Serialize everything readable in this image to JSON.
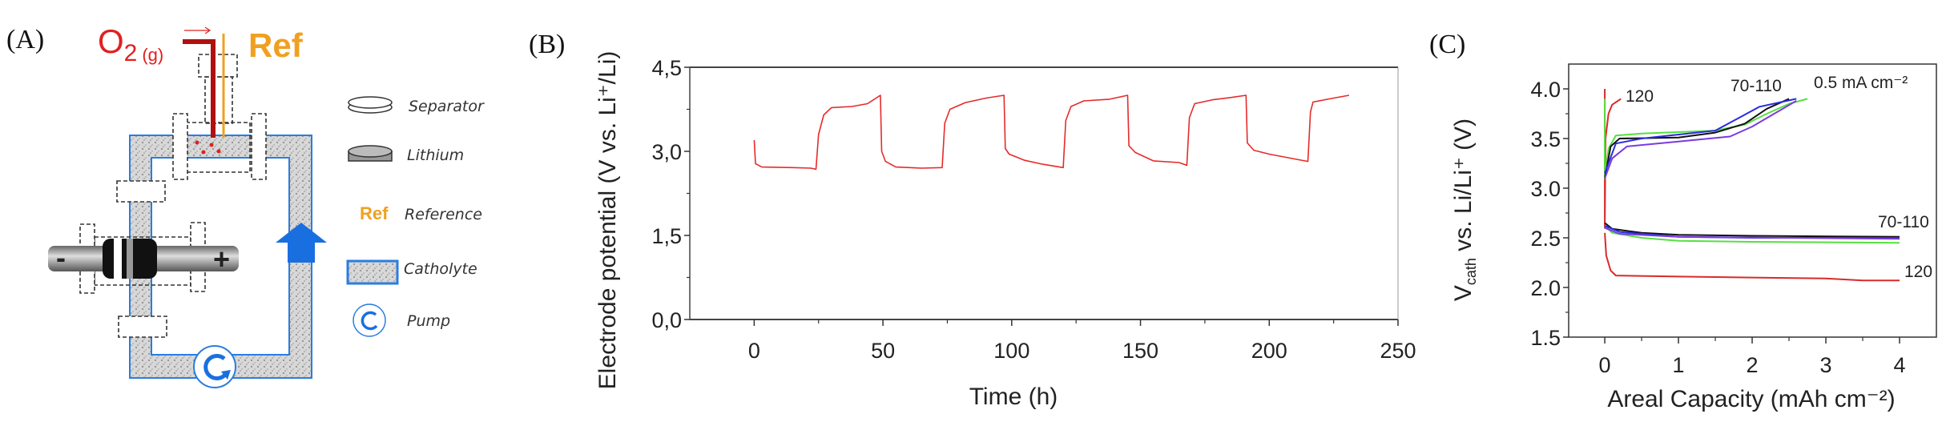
{
  "panel_a": {
    "label": "(A)",
    "gas_label": "O",
    "gas_sub": "2",
    "gas_state": "(g)",
    "ref_label": "Ref",
    "electrode_minus": "-",
    "electrode_plus": "+",
    "legend": [
      {
        "icon": "separator-disc-icon",
        "label": "Separator"
      },
      {
        "icon": "lithium-disc-icon",
        "label": "Lithium"
      },
      {
        "icon": "ref-text-icon",
        "symbol": "Ref",
        "label": "Reference"
      },
      {
        "icon": "catholyte-swatch-icon",
        "label": "Catholyte"
      },
      {
        "icon": "pump-icon",
        "label": "Pump"
      }
    ],
    "colors": {
      "oxygen": "#e02020",
      "reference": "#f0a020",
      "catholyte_border": "#2a7de1",
      "flow_arrow": "#1a6fe0"
    }
  },
  "chart_data": [
    {
      "panel_label": "(B)",
      "type": "line",
      "xlabel": "Time (h)",
      "ylabel": "Electrode potential (V vs. Li⁺/Li)",
      "xlim": [
        -25,
        250
      ],
      "ylim": [
        0,
        4.5
      ],
      "xticks": [
        "0",
        "50",
        "100",
        "150",
        "200",
        "250"
      ],
      "xtick_values": [
        0,
        50,
        100,
        150,
        200,
        250
      ],
      "yticks": [
        "0,0",
        "1,5",
        "3,0",
        "4,5"
      ],
      "ytick_values": [
        0,
        1.5,
        3.0,
        4.5
      ],
      "grid": false,
      "series": [
        {
          "color": "#e52b2b",
          "points": [
            [
              0,
              3.2
            ],
            [
              0.5,
              2.78
            ],
            [
              3,
              2.72
            ],
            [
              15,
              2.71
            ],
            [
              22,
              2.7
            ],
            [
              24,
              2.68
            ],
            [
              25,
              3.3
            ],
            [
              27,
              3.65
            ],
            [
              30,
              3.78
            ],
            [
              38,
              3.8
            ],
            [
              44,
              3.85
            ],
            [
              49,
              4.0
            ],
            [
              49.5,
              3.0
            ],
            [
              51,
              2.82
            ],
            [
              55,
              2.72
            ],
            [
              65,
              2.7
            ],
            [
              73,
              2.71
            ],
            [
              74,
              3.5
            ],
            [
              76,
              3.75
            ],
            [
              82,
              3.87
            ],
            [
              90,
              3.95
            ],
            [
              97,
              4.0
            ],
            [
              97.5,
              3.05
            ],
            [
              99,
              2.95
            ],
            [
              105,
              2.84
            ],
            [
              112,
              2.77
            ],
            [
              120,
              2.71
            ],
            [
              121,
              3.55
            ],
            [
              123,
              3.8
            ],
            [
              128,
              3.9
            ],
            [
              138,
              3.93
            ],
            [
              145,
              4.0
            ],
            [
              145.5,
              3.1
            ],
            [
              148,
              2.98
            ],
            [
              155,
              2.83
            ],
            [
              165,
              2.8
            ],
            [
              168,
              2.75
            ],
            [
              169,
              3.6
            ],
            [
              171,
              3.85
            ],
            [
              178,
              3.92
            ],
            [
              185,
              3.96
            ],
            [
              191,
              4.0
            ],
            [
              191.5,
              3.15
            ],
            [
              194,
              3.02
            ],
            [
              200,
              2.95
            ],
            [
              208,
              2.88
            ],
            [
              215,
              2.82
            ],
            [
              216,
              3.7
            ],
            [
              217,
              3.88
            ],
            [
              225,
              3.95
            ],
            [
              231,
              4.0
            ]
          ]
        }
      ]
    },
    {
      "panel_label": "(C)",
      "type": "line",
      "xlabel": "Areal Capacity (mAh cm⁻²)",
      "ylabel": "V",
      "ylabel_sub": "cath",
      "ylabel_rest": " vs. Li/Li⁺ (V)",
      "xlim": [
        -0.49,
        4.5
      ],
      "ylim": [
        1.5,
        4.25
      ],
      "xticks": [
        "0",
        "1",
        "2",
        "3",
        "4"
      ],
      "xtick_values": [
        0,
        1,
        2,
        3,
        4
      ],
      "yticks": [
        "1.5",
        "2.0",
        "2.5",
        "3.0",
        "3.5",
        "4.0"
      ],
      "ytick_values": [
        1.5,
        2.0,
        2.5,
        3.0,
        3.5,
        4.0
      ],
      "grid": false,
      "annotations": {
        "current": "0.5 mA cm⁻²",
        "charge_120": "120",
        "charge_70_110": "70-110",
        "discharge_70_110": "70-110",
        "discharge_120": "120"
      },
      "series": [
        {
          "group": "120",
          "color": "#d92a2a",
          "points": [
            [
              0,
              4.0
            ],
            [
              0,
              2.6
            ],
            [
              0.01,
              3.5
            ],
            [
              0.05,
              3.75
            ],
            [
              0.1,
              3.84
            ],
            [
              0.22,
              3.9
            ]
          ]
        },
        {
          "group": "120",
          "color": "#d92a2a",
          "points": [
            [
              0,
              2.55
            ],
            [
              0.02,
              2.32
            ],
            [
              0.08,
              2.17
            ],
            [
              0.15,
              2.12
            ],
            [
              1,
              2.11
            ],
            [
              2,
              2.1
            ],
            [
              3,
              2.09
            ],
            [
              3.5,
              2.07
            ],
            [
              4,
              2.07
            ]
          ]
        },
        {
          "group": "70-110",
          "color": "#55e040",
          "points": [
            [
              0,
              3.9
            ],
            [
              0,
              3.1
            ],
            [
              0.05,
              3.4
            ],
            [
              0.15,
              3.53
            ],
            [
              0.5,
              3.55
            ],
            [
              1.5,
              3.58
            ],
            [
              1.9,
              3.64
            ],
            [
              2.2,
              3.75
            ],
            [
              2.5,
              3.85
            ],
            [
              2.75,
              3.9
            ]
          ]
        },
        {
          "group": "70-110",
          "color": "#55e040",
          "points": [
            [
              0,
              2.62
            ],
            [
              0.1,
              2.55
            ],
            [
              0.5,
              2.5
            ],
            [
              1,
              2.47
            ],
            [
              2,
              2.46
            ],
            [
              4,
              2.45
            ]
          ]
        },
        {
          "group": "70-110",
          "color": "#111111",
          "points": [
            [
              0,
              3.1
            ],
            [
              0.08,
              3.42
            ],
            [
              0.2,
              3.5
            ],
            [
              1,
              3.51
            ],
            [
              1.5,
              3.56
            ],
            [
              1.9,
              3.65
            ],
            [
              2.2,
              3.8
            ],
            [
              2.5,
              3.9
            ]
          ]
        },
        {
          "group": "70-110",
          "color": "#111111",
          "points": [
            [
              0,
              2.65
            ],
            [
              0.1,
              2.59
            ],
            [
              0.5,
              2.55
            ],
            [
              1,
              2.53
            ],
            [
              2,
              2.52
            ],
            [
              4,
              2.51
            ]
          ]
        },
        {
          "group": "70-110",
          "color": "#2a2ae0",
          "points": [
            [
              0,
              3.15
            ],
            [
              0.15,
              3.45
            ],
            [
              0.5,
              3.5
            ],
            [
              1.5,
              3.58
            ],
            [
              1.8,
              3.7
            ],
            [
              2.1,
              3.82
            ],
            [
              2.6,
              3.9
            ]
          ]
        },
        {
          "group": "70-110",
          "color": "#2a2ae0",
          "points": [
            [
              0,
              2.62
            ],
            [
              0.2,
              2.56
            ],
            [
              1,
              2.51
            ],
            [
              2,
              2.5
            ],
            [
              4,
              2.5
            ]
          ]
        },
        {
          "group": "70-110",
          "color": "#7a3ae0",
          "points": [
            [
              0,
              3.1
            ],
            [
              0.1,
              3.3
            ],
            [
              0.3,
              3.42
            ],
            [
              1,
              3.47
            ],
            [
              1.7,
              3.52
            ],
            [
              2.0,
              3.62
            ],
            [
              2.3,
              3.75
            ],
            [
              2.6,
              3.88
            ]
          ]
        },
        {
          "group": "70-110",
          "color": "#7a3ae0",
          "points": [
            [
              0,
              2.6
            ],
            [
              0.2,
              2.54
            ],
            [
              1,
              2.51
            ],
            [
              4,
              2.49
            ]
          ]
        }
      ]
    }
  ]
}
